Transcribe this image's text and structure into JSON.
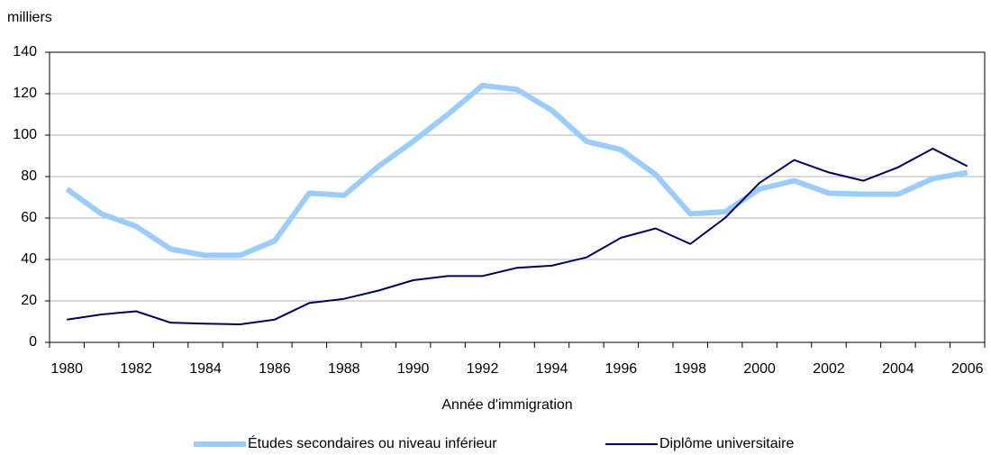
{
  "chart_data": {
    "type": "line",
    "y_label": "milliers",
    "x_label": "Année d'immigration",
    "categories": [
      "1980",
      null,
      "1982",
      null,
      "1984",
      null,
      "1986",
      null,
      "1988",
      null,
      "1990",
      null,
      "1992",
      null,
      "1994",
      null,
      "1996",
      null,
      "1998",
      null,
      "2000",
      null,
      "2002",
      null,
      "2004",
      null,
      "2006"
    ],
    "series": [
      {
        "name": "Études secondaires ou niveau inférieur",
        "color": "#99ccff",
        "width": 6,
        "values": [
          74,
          62,
          56,
          45,
          42,
          42,
          49,
          72,
          71,
          85,
          97,
          110,
          124,
          122,
          112,
          97,
          93,
          81,
          62,
          63,
          74,
          78,
          72,
          71.5,
          71.5,
          79,
          82
        ]
      },
      {
        "name": "Diplôme universitaire",
        "color": "#000066",
        "width": 2,
        "values": [
          11,
          13.5,
          15,
          9.5,
          9,
          8.7,
          11,
          19,
          21,
          25,
          30,
          32,
          32,
          36,
          37,
          41,
          50.5,
          55,
          47.5,
          60,
          77,
          88,
          82,
          78,
          84.5,
          93.5,
          85
        ]
      }
    ],
    "ylim": [
      0,
      140
    ],
    "yticks": [
      0,
      20,
      40,
      60,
      80,
      100,
      120,
      140
    ],
    "grid": true
  }
}
